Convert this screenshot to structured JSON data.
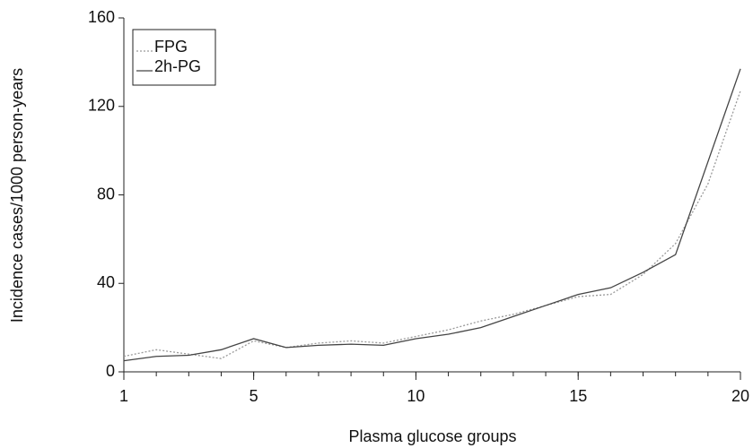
{
  "chart_data": {
    "type": "line",
    "x_label": "Plasma glucose groups",
    "y_label": "Incidence cases/1000 person-years",
    "x": [
      1,
      2,
      3,
      4,
      5,
      6,
      7,
      8,
      9,
      10,
      11,
      12,
      13,
      14,
      15,
      16,
      17,
      18,
      19,
      20
    ],
    "series": [
      {
        "name": "FPG",
        "color": "#9a9a9a",
        "style": "dotted",
        "values": [
          7,
          10,
          8,
          6,
          14,
          11,
          13,
          14,
          13,
          16,
          19,
          23,
          26,
          30,
          34,
          35,
          44,
          58,
          85,
          127
        ]
      },
      {
        "name": "2h-PG",
        "color": "#444444",
        "style": "solid",
        "values": [
          5,
          7,
          7.5,
          10,
          15,
          11,
          12,
          12.5,
          12,
          15,
          17,
          20,
          25,
          30,
          35,
          38,
          45,
          53,
          95,
          137
        ]
      }
    ],
    "xlim": [
      1,
      20
    ],
    "xticks": [
      1,
      5,
      10,
      15,
      20
    ],
    "ylim": [
      0,
      160
    ],
    "yticks": [
      0,
      40,
      80,
      120,
      160
    ],
    "grid": false,
    "legend": "upper-left"
  }
}
